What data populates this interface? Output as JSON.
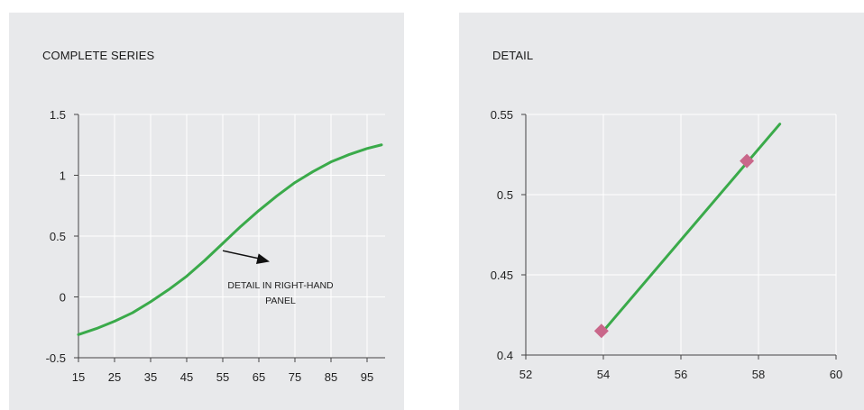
{
  "chart_data": [
    {
      "type": "line",
      "title": "COMPLETE SERIES",
      "xlabel": "",
      "ylabel": "",
      "xlim": [
        15,
        100
      ],
      "ylim": [
        -0.5,
        1.5
      ],
      "xticks": [
        15,
        25,
        35,
        45,
        55,
        65,
        75,
        85,
        95
      ],
      "xtick_labels": [
        "15",
        "25",
        "35",
        "45",
        "55",
        "65",
        "75",
        "85",
        "95"
      ],
      "yticks": [
        -0.5,
        0,
        0.5,
        1,
        1.5
      ],
      "ytick_labels": [
        "-0.5",
        "0",
        "0.5",
        "1",
        "1.5"
      ],
      "grid": true,
      "line_color": "#3aaa4a",
      "series": [
        {
          "x": [
            15,
            20,
            25,
            30,
            35,
            40,
            45,
            50,
            55,
            60,
            65,
            70,
            75,
            80,
            85,
            90,
            95,
            99
          ],
          "y": [
            -0.31,
            -0.26,
            -0.2,
            -0.13,
            -0.04,
            0.06,
            0.17,
            0.3,
            0.44,
            0.58,
            0.71,
            0.83,
            0.94,
            1.03,
            1.11,
            1.17,
            1.22,
            1.25
          ]
        }
      ],
      "annotation": {
        "text_lines": [
          "DETAIL IN RIGHT-HAND",
          "PANEL"
        ],
        "arrow_from": [
          55,
          0.38
        ],
        "arrow_to": [
          68,
          0.29
        ],
        "text_x": 71,
        "text_y": 0.07
      }
    },
    {
      "type": "line",
      "title": "DETAIL",
      "xlabel": "",
      "ylabel": "",
      "xlim": [
        52,
        60
      ],
      "ylim": [
        0.4,
        0.55
      ],
      "xticks": [
        52,
        54,
        56,
        58,
        60
      ],
      "xtick_labels": [
        "52",
        "54",
        "56",
        "58",
        "60"
      ],
      "yticks": [
        0.4,
        0.45,
        0.5,
        0.55
      ],
      "ytick_labels": [
        "0.4",
        "0.45",
        "0.5",
        "0.55"
      ],
      "grid": true,
      "line_color": "#3aaa4a",
      "marker_color": "#c9678a",
      "series": [
        {
          "x": [
            54,
            58.55
          ],
          "y": [
            0.415,
            0.544
          ]
        }
      ],
      "markers": [
        {
          "x": 53.95,
          "y": 0.415
        },
        {
          "x": 57.7,
          "y": 0.521
        }
      ]
    }
  ]
}
